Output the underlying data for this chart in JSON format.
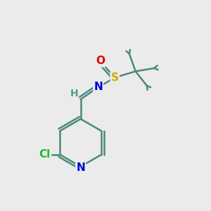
{
  "background_color": "#ebebeb",
  "bond_color": "#4a8a7a",
  "bond_width": 1.8,
  "atom_colors": {
    "N_ring": "#0000dd",
    "N_imine": "#0000dd",
    "Cl": "#22bb22",
    "O": "#dd0000",
    "S": "#ccaa00",
    "H": "#5a9a8a",
    "C": "#4a8a7a"
  },
  "font_size_atoms": 11,
  "font_size_H": 10
}
